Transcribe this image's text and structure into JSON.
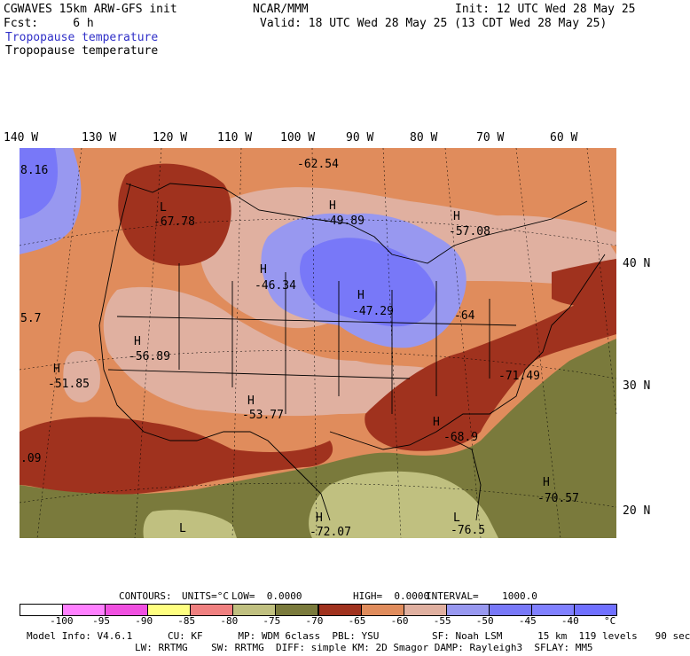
{
  "header": {
    "title": "CGWAVES 15km ARW-GFS init",
    "fcst": "Fcst:     6 h",
    "org": "NCAR/MMM",
    "init": "Init: 12 UTC Wed 28 May 25",
    "valid": "Valid: 18 UTC Wed 28 May 25 (13 CDT Wed 28 May 25)",
    "field_blue": "Tropopause temperature",
    "field_black": "Tropopause temperature"
  },
  "longitude_labels": [
    "140 W",
    "130 W",
    "120 W",
    "110 W",
    "100 W",
    "90 W",
    "80 W",
    "70 W",
    "60 W"
  ],
  "latitude_labels": [
    "40 N",
    "30 N",
    "20 N"
  ],
  "map_labels": [
    {
      "text": "-62.54"
    },
    {
      "text": "8.16"
    },
    {
      "text": "L"
    },
    {
      "text": "-67.78"
    },
    {
      "text": "H"
    },
    {
      "text": "-49.89"
    },
    {
      "text": "H"
    },
    {
      "text": "-57.08"
    },
    {
      "text": "H"
    },
    {
      "text": "-46.34"
    },
    {
      "text": "H"
    },
    {
      "text": "-47.29"
    },
    {
      "text": "-64"
    },
    {
      "text": "5.7"
    },
    {
      "text": "H"
    },
    {
      "text": "-56.89"
    },
    {
      "text": "H"
    },
    {
      "text": "-51.85"
    },
    {
      "text": "-71.49"
    },
    {
      "text": "H"
    },
    {
      "text": "-53.77"
    },
    {
      "text": "H"
    },
    {
      "text": "-68.9"
    },
    {
      "text": ".09"
    },
    {
      "text": "H"
    },
    {
      "text": "-70.57"
    },
    {
      "text": "H"
    },
    {
      "text": "-72.07"
    },
    {
      "text": "L"
    },
    {
      "text": "-76.5"
    },
    {
      "text": "L"
    }
  ],
  "colors": {
    "salmon": "#e08c5c",
    "pink": "#e0b0a0",
    "brick": "#a0321e",
    "lavender": "#9898f0",
    "blue": "#7878f8",
    "olive": "#7a7a3c",
    "khaki": "#c0c080",
    "lightpurple": "#a090d8"
  },
  "contours": {
    "contours_label": "CONTOURS:",
    "units": "UNITS=°C",
    "low": "LOW=  0.0000",
    "high": "HIGH=  0.0000",
    "interval": "INTERVAL=    1000.0"
  },
  "colorbar": {
    "ticks": [
      "-100",
      "-95",
      "-90",
      "-85",
      "-80",
      "-75",
      "-70",
      "-65",
      "-60",
      "-55",
      "-50",
      "-45",
      "-40",
      "°C"
    ],
    "colors": [
      "#ffffff",
      "#ff80ff",
      "#f050e0",
      "#ffff80",
      "#f08080",
      "#c0c080",
      "#7a7a3c",
      "#a0321e",
      "#e08c5c",
      "#e0b0a0",
      "#9898f0",
      "#7878f8",
      "#8080ff",
      "#7070ff"
    ]
  },
  "footer": {
    "line1": "Model Info: V4.6.1      CU: KF      MP: WDM 6class  PBL: YSU         SF: Noah LSM      15 km  119 levels   90 sec",
    "line2": "LW: RRTMG    SW: RRTMG  DIFF: simple KM: 2D Smagor DAMP: Rayleigh3  SFLAY: MM5"
  }
}
